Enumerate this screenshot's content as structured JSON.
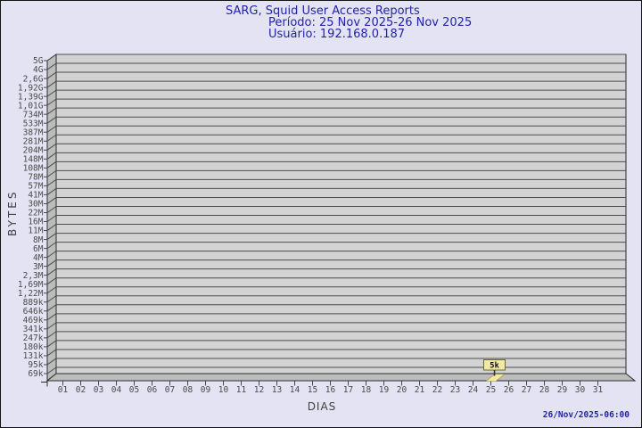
{
  "header": {
    "title": "SARG, Squid User Access Reports",
    "period": "Período: 25 Nov 2025-26 Nov 2025",
    "user": "Usuário: 192.168.0.187"
  },
  "footer": {
    "timestamp": "26/Nov/2025-06:00"
  },
  "colors": {
    "background": "#e3e3f3",
    "title_text": "#2323a7",
    "plot_fill": "#d3d3d3",
    "wall_fill": "#bcbcbc",
    "grid_line": "#4d4d4d",
    "axis_text": "#4a4a4a",
    "tag_fill": "#f2e9a5",
    "tag_border": "#6b6b33",
    "bar_fill": "#f5e9a0"
  },
  "chart_data": {
    "type": "bar",
    "style": "3d-bar",
    "title": "SARG, Squid User Access Reports",
    "subtitle_period": "Período: 25 Nov 2025-26 Nov 2025",
    "subtitle_user": "Usuário: 192.168.0.187",
    "xlabel": "DIAS",
    "ylabel": "BYTES",
    "y_scale": "log",
    "grid": true,
    "legend": "none",
    "y_min_label": "69k",
    "y_max_label": "5G",
    "y_ticks": [
      "5G",
      "4G",
      "2,6G",
      "1,92G",
      "1,39G",
      "1,01G",
      "734M",
      "533M",
      "387M",
      "281M",
      "204M",
      "148M",
      "108M",
      "78M",
      "57M",
      "41M",
      "30M",
      "22M",
      "16M",
      "11M",
      "8M",
      "6M",
      "4M",
      "3M",
      "2,3M",
      "1,69M",
      "1,22M",
      "889k",
      "646k",
      "469k",
      "341k",
      "247k",
      "180k",
      "131k",
      "95k",
      "69k"
    ],
    "x_ticks": [
      "01",
      "02",
      "03",
      "04",
      "05",
      "06",
      "07",
      "08",
      "09",
      "10",
      "11",
      "12",
      "13",
      "14",
      "15",
      "16",
      "17",
      "18",
      "19",
      "20",
      "21",
      "22",
      "23",
      "24",
      "25",
      "26",
      "27",
      "28",
      "29",
      "30",
      "31"
    ],
    "series": [
      {
        "name": "bytes-per-day",
        "points": [
          {
            "x": "25",
            "label": "5k",
            "value_bytes": 5000
          }
        ]
      }
    ]
  }
}
